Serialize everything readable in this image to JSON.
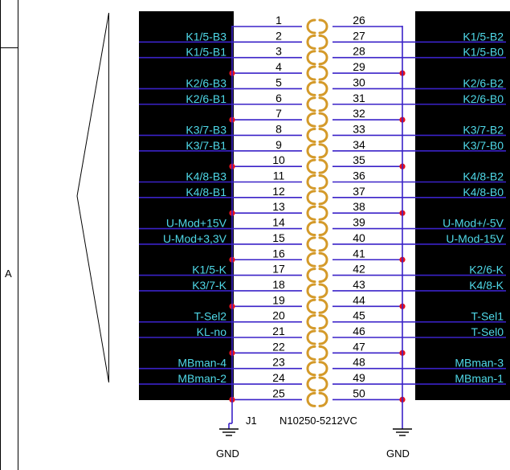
{
  "border": {
    "zone_label": "A"
  },
  "connector": {
    "designator": "J1",
    "part_number": "N10250-5212VC",
    "pins_left": [
      "1",
      "2",
      "3",
      "4",
      "5",
      "6",
      "7",
      "8",
      "9",
      "10",
      "11",
      "12",
      "13",
      "14",
      "15",
      "16",
      "17",
      "18",
      "19",
      "20",
      "21",
      "22",
      "23",
      "24",
      "25"
    ],
    "pins_right": [
      "26",
      "27",
      "28",
      "29",
      "30",
      "31",
      "32",
      "33",
      "34",
      "35",
      "36",
      "37",
      "38",
      "39",
      "40",
      "41",
      "42",
      "43",
      "44",
      "45",
      "46",
      "47",
      "48",
      "49",
      "50"
    ]
  },
  "signals_left": [
    {
      "row": 2,
      "label": "K1/5-B3"
    },
    {
      "row": 3,
      "label": "K1/5-B1"
    },
    {
      "row": 5,
      "label": "K2/6-B3"
    },
    {
      "row": 6,
      "label": "K2/6-B1"
    },
    {
      "row": 8,
      "label": "K3/7-B3"
    },
    {
      "row": 9,
      "label": "K3/7-B1"
    },
    {
      "row": 11,
      "label": "K4/8-B3"
    },
    {
      "row": 12,
      "label": "K4/8-B1"
    },
    {
      "row": 14,
      "label": "U-Mod+15V"
    },
    {
      "row": 15,
      "label": "U-Mod+3,3V"
    },
    {
      "row": 17,
      "label": "K1/5-K"
    },
    {
      "row": 18,
      "label": "K3/7-K"
    },
    {
      "row": 20,
      "label": "T-Sel2"
    },
    {
      "row": 21,
      "label": "KL-no"
    },
    {
      "row": 23,
      "label": "MBman-4"
    },
    {
      "row": 24,
      "label": "MBman-2"
    }
  ],
  "signals_right": [
    {
      "row": 2,
      "label": "K1/5-B2"
    },
    {
      "row": 3,
      "label": "K1/5-B0"
    },
    {
      "row": 5,
      "label": "K2/6-B2"
    },
    {
      "row": 6,
      "label": "K2/6-B0"
    },
    {
      "row": 8,
      "label": "K3/7-B2"
    },
    {
      "row": 9,
      "label": "K3/7-B0"
    },
    {
      "row": 11,
      "label": "K4/8-B2"
    },
    {
      "row": 12,
      "label": "K4/8-B0"
    },
    {
      "row": 14,
      "label": "U-Mod+/-5V"
    },
    {
      "row": 15,
      "label": "U-Mod-15V"
    },
    {
      "row": 17,
      "label": "K2/6-K"
    },
    {
      "row": 18,
      "label": "K4/8-K"
    },
    {
      "row": 20,
      "label": "T-Sel1"
    },
    {
      "row": 21,
      "label": "T-Sel0"
    },
    {
      "row": 23,
      "label": "MBman-3"
    },
    {
      "row": 24,
      "label": "MBman-1"
    }
  ],
  "ground": {
    "left_label": "GND",
    "right_label": "GND"
  },
  "colors": {
    "wire": "#3a22c8",
    "label": "#4fd8e8",
    "junction": "#e8101a",
    "coil": "#d49a2a",
    "block": "#000000"
  }
}
